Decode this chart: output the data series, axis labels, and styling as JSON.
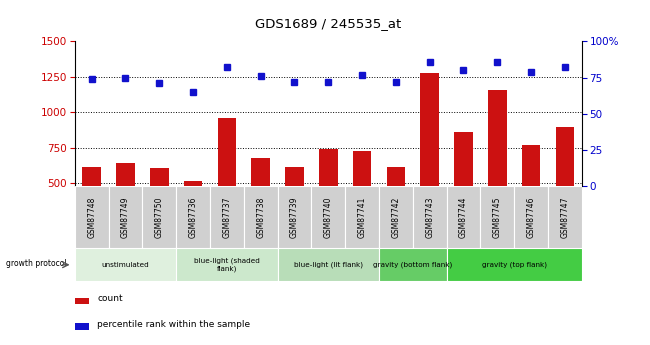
{
  "title": "GDS1689 / 245535_at",
  "samples": [
    "GSM87748",
    "GSM87749",
    "GSM87750",
    "GSM87736",
    "GSM87737",
    "GSM87738",
    "GSM87739",
    "GSM87740",
    "GSM87741",
    "GSM87742",
    "GSM87743",
    "GSM87744",
    "GSM87745",
    "GSM87746",
    "GSM87747"
  ],
  "counts": [
    615,
    645,
    610,
    520,
    960,
    680,
    615,
    740,
    730,
    615,
    1280,
    860,
    1160,
    770,
    900
  ],
  "percentiles": [
    74,
    75,
    71,
    65,
    82,
    76,
    72,
    72,
    77,
    72,
    86,
    80,
    86,
    79,
    82
  ],
  "ylim_left": [
    480,
    1500
  ],
  "ylim_right": [
    0,
    100
  ],
  "yticks_left": [
    500,
    750,
    1000,
    1250,
    1500
  ],
  "yticks_right": [
    0,
    25,
    50,
    75,
    100
  ],
  "groups": [
    {
      "label": "unstimulated",
      "start": 0,
      "end": 3,
      "color": "#dff0de"
    },
    {
      "label": "blue-light (shaded\nflank)",
      "start": 3,
      "end": 6,
      "color": "#cce8cc"
    },
    {
      "label": "blue-light (lit flank)",
      "start": 6,
      "end": 9,
      "color": "#b8ddb8"
    },
    {
      "label": "gravity (bottom flank)",
      "start": 9,
      "end": 11,
      "color": "#66cc66"
    },
    {
      "label": "gravity (top flank)",
      "start": 11,
      "end": 15,
      "color": "#44cc44"
    }
  ],
  "bar_color": "#cc1111",
  "dot_color": "#1111cc",
  "plot_bg": "#ffffff",
  "sample_box_bg": "#d0d0d0",
  "label_color_left": "#cc0000",
  "label_color_right": "#0000cc",
  "fig_bg": "#ffffff"
}
